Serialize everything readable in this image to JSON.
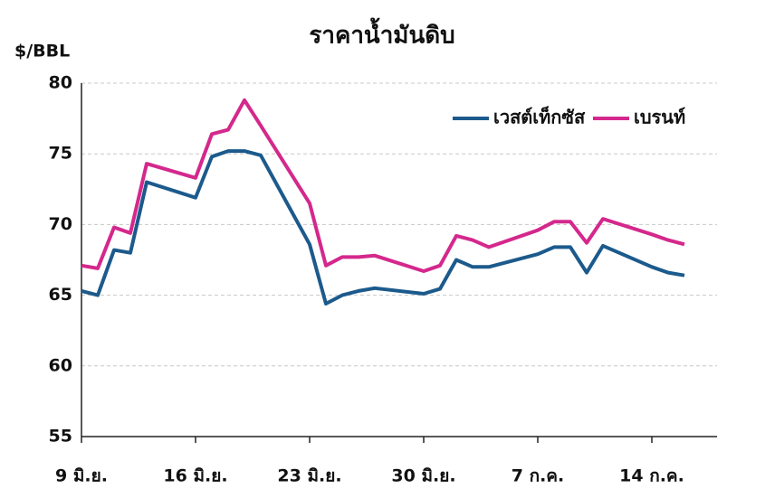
{
  "chart_data": {
    "type": "line",
    "title": "ราคาน้ำมันดิบ",
    "y_label": "$/BBL",
    "x": [
      "06-09",
      "06-10",
      "06-11",
      "06-12",
      "06-13",
      "06-16",
      "06-17",
      "06-18",
      "06-19",
      "06-20",
      "06-23",
      "06-24",
      "06-25",
      "06-26",
      "06-27",
      "06-30",
      "07-01",
      "07-02",
      "07-03",
      "07-04",
      "07-07",
      "07-08",
      "07-09",
      "07-10",
      "07-11",
      "07-14",
      "07-15",
      "07-16"
    ],
    "series": [
      {
        "name": "เวสต์เท็กซัส",
        "color": "#1c5a8c",
        "values": [
          65.3,
          65.0,
          68.2,
          68.0,
          73.0,
          71.9,
          74.8,
          75.2,
          75.2,
          74.9,
          68.6,
          64.4,
          65.0,
          65.3,
          65.5,
          65.1,
          65.45,
          67.5,
          67.0,
          67.0,
          67.9,
          68.4,
          68.4,
          66.6,
          68.5,
          67.0,
          66.6,
          66.4
        ]
      },
      {
        "name": "เบรนท์",
        "color": "#d4288c",
        "values": [
          67.1,
          66.9,
          69.8,
          69.4,
          74.3,
          73.3,
          76.4,
          76.7,
          78.8,
          77.0,
          71.5,
          67.1,
          67.7,
          67.7,
          67.8,
          66.7,
          67.1,
          69.2,
          68.9,
          68.4,
          69.6,
          70.2,
          70.2,
          68.7,
          70.4,
          69.3,
          68.9,
          68.6
        ]
      }
    ],
    "xlim": [
      "06-09",
      "07-18"
    ],
    "xticks": [
      {
        "value": "06-09",
        "label": "9 มิ.ย."
      },
      {
        "value": "06-16",
        "label": "16 มิ.ย."
      },
      {
        "value": "06-23",
        "label": "23 มิ.ย."
      },
      {
        "value": "06-30",
        "label": "30 มิ.ย."
      },
      {
        "value": "07-07",
        "label": "7 ก.ค."
      },
      {
        "value": "07-14",
        "label": "14 ก.ค."
      }
    ],
    "ylim": [
      55,
      80
    ],
    "yticks": [
      55,
      60,
      65,
      70,
      75,
      80
    ],
    "grid": true,
    "legend": "upper right"
  }
}
